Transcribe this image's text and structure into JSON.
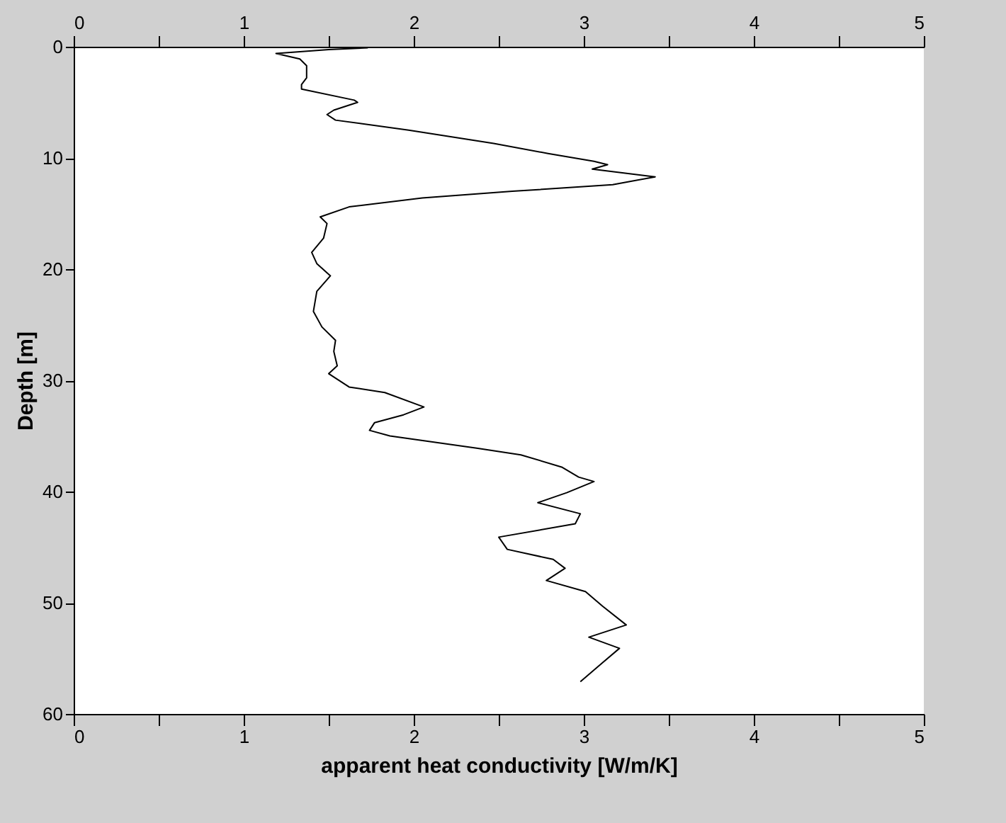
{
  "chart_data": {
    "type": "line",
    "xlabel": "apparent heat conductivity [W/m/K]",
    "ylabel": "Depth [m]",
    "x": [
      1.73,
      1.5,
      1.19,
      1.33,
      1.37,
      1.37,
      1.34,
      1.34,
      1.65,
      1.67,
      1.53,
      1.49,
      1.54,
      1.97,
      2.47,
      2.79,
      3.06,
      3.14,
      3.05,
      3.42,
      3.17,
      2.58,
      2.05,
      1.62,
      1.45,
      1.49,
      1.47,
      1.4,
      1.43,
      1.51,
      1.43,
      1.41,
      1.46,
      1.54,
      1.53,
      1.55,
      1.5,
      1.62,
      1.83,
      2.06,
      1.94,
      1.77,
      1.74,
      1.86,
      2.37,
      2.63,
      2.87,
      2.97,
      3.06,
      2.9,
      2.73,
      2.98,
      2.95,
      2.5,
      2.55,
      2.82,
      2.89,
      2.78,
      3.01,
      3.11,
      3.25,
      3.03,
      3.21,
      3.11,
      2.98
    ],
    "series": [
      {
        "color": "#000000",
        "values": [
          0.1,
          0.25,
          0.6,
          1.1,
          1.7,
          2.8,
          3.4,
          3.8,
          4.8,
          5.0,
          5.7,
          6.1,
          6.6,
          7.5,
          8.7,
          9.6,
          10.3,
          10.6,
          11.0,
          11.7,
          12.4,
          13.0,
          13.6,
          14.4,
          15.3,
          15.9,
          17.2,
          18.5,
          19.5,
          20.6,
          22.0,
          23.8,
          25.2,
          26.4,
          27.4,
          28.7,
          29.4,
          30.6,
          31.1,
          32.4,
          33.1,
          33.8,
          34.5,
          35.0,
          36.1,
          36.7,
          37.8,
          38.7,
          39.1,
          40.1,
          41.0,
          42.0,
          42.9,
          44.1,
          45.2,
          46.1,
          46.9,
          48.0,
          49.0,
          50.3,
          52.0,
          53.1,
          54.1,
          55.4,
          57.1
        ]
      }
    ],
    "xlim": [
      0,
      5
    ],
    "xticks": [
      0,
      {
        "value": 0.5,
        "label": null
      },
      1,
      {
        "value": 1.5,
        "label": null
      },
      2,
      {
        "value": 2.5,
        "label": null
      },
      3,
      {
        "value": 3.5,
        "label": null
      },
      4,
      {
        "value": 4.5,
        "label": null
      },
      5
    ],
    "x2lim": [
      0,
      5
    ],
    "x2ticks": [
      0,
      {
        "value": 0.5,
        "label": null
      },
      1,
      {
        "value": 1.5,
        "label": null
      },
      2,
      {
        "value": 2.5,
        "label": null
      },
      3,
      {
        "value": 3.5,
        "label": null
      },
      4,
      {
        "value": 4.5,
        "label": null
      },
      5
    ],
    "ylim": [
      60,
      0
    ],
    "yticks": [
      0,
      10,
      20,
      30,
      40,
      50,
      60
    ],
    "grid": false,
    "legend": false,
    "marker": "none",
    "line_style": "solid"
  }
}
